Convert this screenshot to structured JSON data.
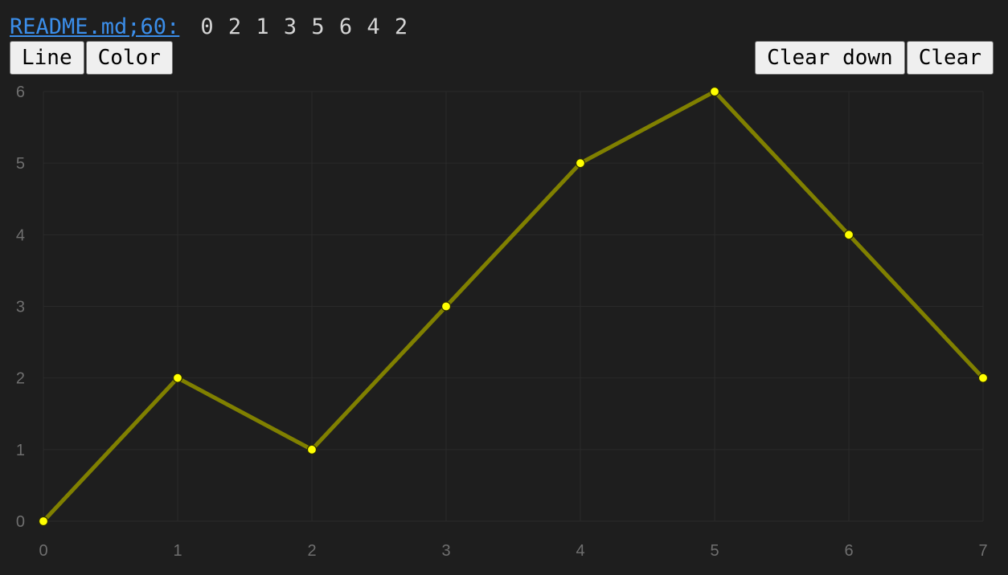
{
  "header": {
    "source_link": "README.md;60:",
    "values_text": "0 2 1 3 5 6 4 2"
  },
  "toolbar": {
    "line_label": "Line",
    "color_label": "Color",
    "clear_down_label": "Clear down",
    "clear_label": "Clear"
  },
  "colors": {
    "background": "#1e1e1e",
    "line": "#808000",
    "point_fill": "#ffff00",
    "grid": "#2a2a2a",
    "tick_text": "#6f6f6f"
  },
  "chart_data": {
    "type": "line",
    "title": "",
    "xlabel": "",
    "ylabel": "",
    "x": [
      0,
      1,
      2,
      3,
      4,
      5,
      6,
      7
    ],
    "series": [
      {
        "values": [
          0,
          2,
          1,
          3,
          5,
          6,
          4,
          2
        ]
      }
    ],
    "xlim": [
      0,
      7
    ],
    "ylim": [
      0,
      6
    ],
    "xticks": [
      "0",
      "1",
      "2",
      "3",
      "4",
      "5",
      "6",
      "7"
    ],
    "yticks": [
      "0",
      "1",
      "2",
      "3",
      "4",
      "5",
      "6"
    ],
    "grid": true,
    "legend": "none"
  }
}
